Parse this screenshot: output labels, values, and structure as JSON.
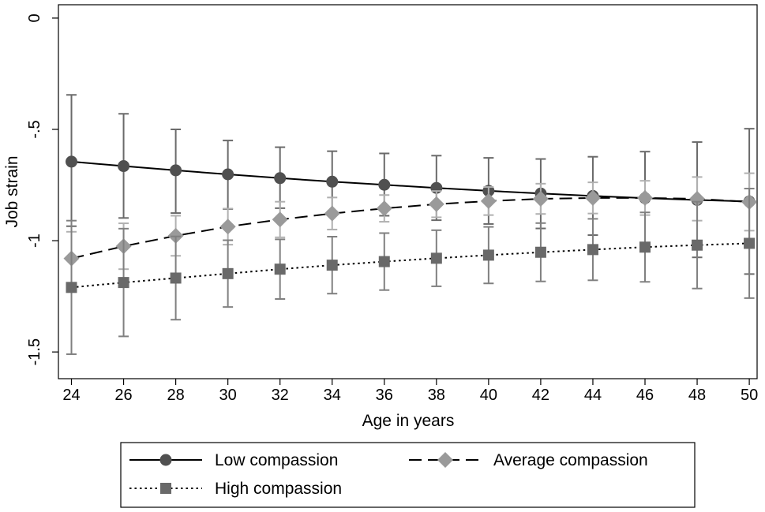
{
  "chart_data": {
    "type": "line",
    "title": "",
    "xlabel": "Age in years",
    "ylabel": "Job strain",
    "xlim": [
      23.5,
      50.3
    ],
    "ylim": [
      -1.62,
      0.06
    ],
    "xticks": [
      24,
      26,
      28,
      30,
      32,
      34,
      36,
      38,
      40,
      42,
      44,
      46,
      48,
      50
    ],
    "yticks": [
      0,
      -0.5,
      -1,
      -1.5
    ],
    "ytick_labels": [
      "0",
      "-.5",
      "-1",
      "-1.5"
    ],
    "x": [
      24,
      26,
      28,
      30,
      32,
      34,
      36,
      38,
      40,
      42,
      44,
      46,
      48,
      50
    ],
    "grid": false,
    "legend_position": "bottom",
    "series": [
      {
        "name": "Low compassion",
        "line_style": "solid",
        "marker": "circle",
        "color": "#505050",
        "values": [
          -0.645,
          -0.665,
          -0.684,
          -0.702,
          -0.719,
          -0.735,
          -0.749,
          -0.763,
          -0.776,
          -0.788,
          -0.799,
          -0.809,
          -0.817,
          -0.824
        ],
        "ci_low": [
          -0.935,
          -0.898,
          -0.876,
          -0.858,
          -0.854,
          -0.868,
          -0.888,
          -0.908,
          -0.925,
          -0.945,
          -0.975,
          -1.015,
          -1.075,
          -1.15
        ],
        "ci_high": [
          -0.345,
          -0.43,
          -0.5,
          -0.55,
          -0.58,
          -0.598,
          -0.608,
          -0.618,
          -0.628,
          -0.633,
          -0.623,
          -0.6,
          -0.557,
          -0.497
        ]
      },
      {
        "name": "Average compassion",
        "line_style": "dashed",
        "marker": "diamond",
        "color": "#9a9a9a",
        "values": [
          -1.08,
          -1.025,
          -0.978,
          -0.937,
          -0.905,
          -0.878,
          -0.855,
          -0.836,
          -0.822,
          -0.812,
          -0.808,
          -0.808,
          -0.812,
          -0.826
        ],
        "ci_low": [
          -1.2,
          -1.128,
          -1.068,
          -1.018,
          -0.985,
          -0.95,
          -0.915,
          -0.895,
          -0.885,
          -0.88,
          -0.878,
          -0.885,
          -0.91,
          -0.955
        ],
        "ci_high": [
          -0.96,
          -0.922,
          -0.888,
          -0.856,
          -0.825,
          -0.806,
          -0.795,
          -0.777,
          -0.759,
          -0.744,
          -0.738,
          -0.731,
          -0.714,
          -0.697
        ]
      },
      {
        "name": "High compassion",
        "line_style": "dotted",
        "marker": "square",
        "color": "#696969",
        "values": [
          -1.21,
          -1.188,
          -1.168,
          -1.148,
          -1.128,
          -1.11,
          -1.094,
          -1.079,
          -1.065,
          -1.052,
          -1.04,
          -1.029,
          -1.02,
          -1.012
        ],
        "ci_low": [
          -1.51,
          -1.43,
          -1.355,
          -1.298,
          -1.262,
          -1.238,
          -1.222,
          -1.205,
          -1.192,
          -1.183,
          -1.178,
          -1.185,
          -1.215,
          -1.258
        ],
        "ci_high": [
          -0.91,
          -0.946,
          -0.981,
          -0.998,
          -0.994,
          -0.982,
          -0.966,
          -0.953,
          -0.938,
          -0.921,
          -0.902,
          -0.873,
          -0.825,
          -0.766
        ]
      }
    ]
  }
}
